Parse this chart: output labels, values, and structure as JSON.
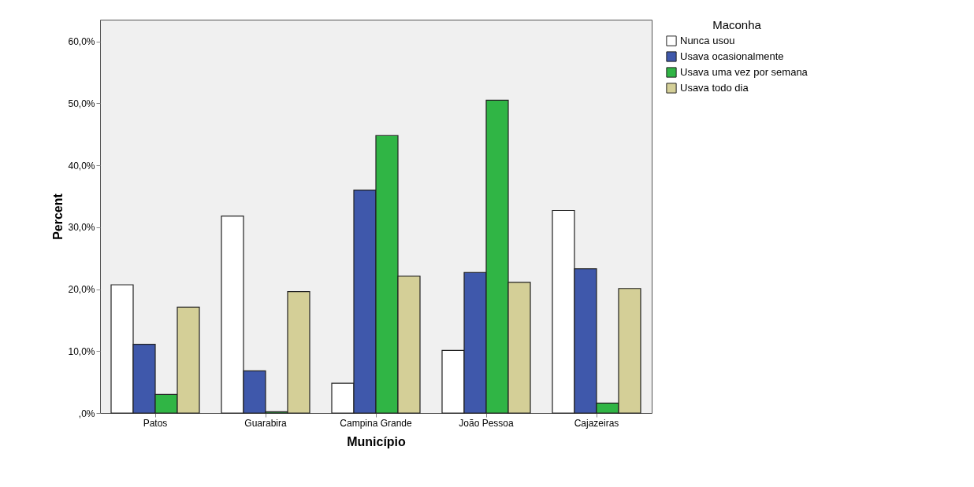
{
  "chart_data": {
    "type": "bar",
    "xlabel": "Município",
    "ylabel": "Percent",
    "legend_title": "Maconha",
    "categories": [
      "Patos",
      "Guarabira",
      "Campina Grande",
      "João Pessoa",
      "Cajazeiras"
    ],
    "series": [
      {
        "name": "Nunca usou",
        "color": "#ffffff",
        "values": [
          20.7,
          31.8,
          4.8,
          10.1,
          32.7
        ]
      },
      {
        "name": "Usava ocasionalmente",
        "color": "#3f58ab",
        "values": [
          11.1,
          6.8,
          36.0,
          22.7,
          23.3
        ]
      },
      {
        "name": "Usava uma vez por semana",
        "color": "#30b545",
        "values": [
          3.0,
          0.2,
          44.8,
          50.5,
          1.6
        ]
      },
      {
        "name": "Usava todo dia",
        "color": "#d4cf97",
        "values": [
          17.1,
          19.6,
          22.1,
          21.1,
          20.1
        ]
      }
    ],
    "ylim": [
      0,
      63.5
    ],
    "yticks": [
      {
        "value": 0,
        "label": ",0%"
      },
      {
        "value": 10,
        "label": "10,0%"
      },
      {
        "value": 20,
        "label": "20,0%"
      },
      {
        "value": 30,
        "label": "30,0%"
      },
      {
        "value": 40,
        "label": "40,0%"
      },
      {
        "value": 50,
        "label": "50,0%"
      },
      {
        "value": 60,
        "label": "60,0%"
      }
    ],
    "grid": false,
    "legend": "top right"
  }
}
